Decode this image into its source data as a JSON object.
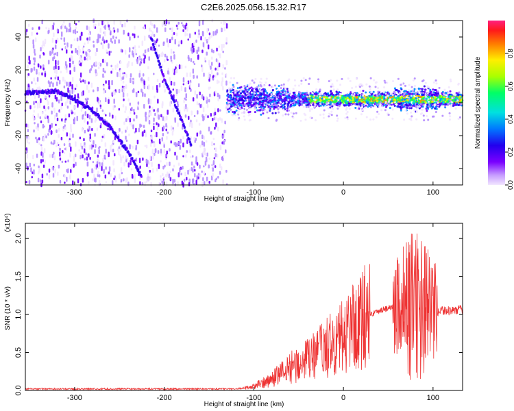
{
  "title": "C2E6.2025.056.15.32.R17",
  "colors": {
    "trace": "#ee3333",
    "axis": "#000000"
  },
  "chart_data": [
    {
      "type": "heatmap",
      "xlabel": "Height of straight line (km)",
      "ylabel": "Frequency (Hz)",
      "xlim": [
        -355,
        133
      ],
      "ylim": [
        -50,
        50
      ],
      "xticks": [
        -300,
        -200,
        -100,
        0,
        100
      ],
      "yticks": [
        -40,
        -20,
        0,
        20,
        40
      ],
      "colorbar": {
        "label": "Normalized spectral amplitude",
        "range": [
          0.0,
          1.0
        ],
        "ticks": [
          0.0,
          0.2,
          0.4,
          0.6,
          0.8
        ],
        "colormap": "rainbow (violet to magenta)"
      },
      "features": {
        "curve_1": [
          [
            -355,
            6
          ],
          [
            -320,
            7
          ],
          [
            -300,
            2
          ],
          [
            -280,
            -5
          ],
          [
            -260,
            -15
          ],
          [
            -240,
            -30
          ],
          [
            -225,
            -45
          ]
        ],
        "curve_2": [
          [
            -215,
            40
          ],
          [
            -200,
            15
          ],
          [
            -185,
            -5
          ],
          [
            -170,
            -25
          ]
        ],
        "dense_band_center_hz": 2,
        "dense_band_start_km": -130
      }
    },
    {
      "type": "line",
      "xlabel": "Height of straight line (km)",
      "ylabel": "SNR (10 * v/v)",
      "scale_label": "(x10⁴)",
      "xlim": [
        -355,
        133
      ],
      "ylim": [
        0,
        2.2
      ],
      "xticks": [
        -300,
        -200,
        -100,
        0,
        100
      ],
      "yticks": [
        0.0,
        0.5,
        1.0,
        1.5,
        2.0
      ],
      "series": [
        {
          "x": [
            -355,
            -300,
            -200,
            -120,
            -100,
            -80,
            -60,
            -40,
            -20,
            0,
            10,
            20,
            40,
            55,
            60,
            70,
            80,
            90,
            100,
            110,
            120,
            133
          ],
          "y": [
            0.02,
            0.02,
            0.02,
            0.02,
            0.05,
            0.15,
            0.3,
            0.4,
            0.55,
            0.7,
            0.85,
            0.95,
            1.05,
            1.1,
            1.1,
            1.1,
            1.1,
            1.1,
            1.0,
            1.05,
            1.05,
            1.07
          ]
        }
      ]
    }
  ]
}
